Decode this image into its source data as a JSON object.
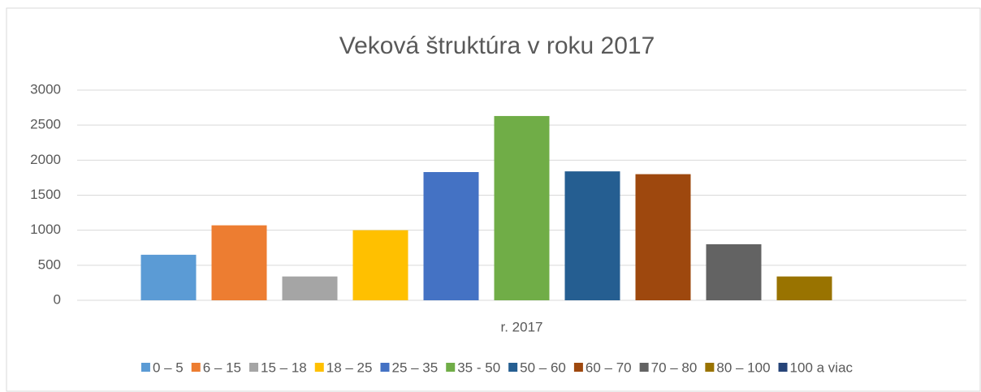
{
  "chart_data": {
    "type": "bar",
    "title": "Veková štruktúra v roku 2017",
    "categories": [
      "r. 2017"
    ],
    "series": [
      {
        "name": "0 – 5",
        "color": "#5b9bd5",
        "values": [
          650
        ]
      },
      {
        "name": "6 – 15",
        "color": "#ed7d31",
        "values": [
          1070
        ]
      },
      {
        "name": "15 – 18",
        "color": "#a5a5a5",
        "values": [
          340
        ]
      },
      {
        "name": "18 – 25",
        "color": "#ffc000",
        "values": [
          1000
        ]
      },
      {
        "name": "25 – 35",
        "color": "#4472c4",
        "values": [
          1830
        ]
      },
      {
        "name": "35 - 50",
        "color": "#70ad47",
        "values": [
          2630
        ]
      },
      {
        "name": "50 – 60",
        "color": "#255e91",
        "values": [
          1840
        ]
      },
      {
        "name": "60 – 70",
        "color": "#9e480e",
        "values": [
          1800
        ]
      },
      {
        "name": "70 – 80",
        "color": "#636363",
        "values": [
          800
        ]
      },
      {
        "name": "80 – 100",
        "color": "#997300",
        "values": [
          340
        ]
      },
      {
        "name": "100 a viac",
        "color": "#264478",
        "values": [
          0
        ]
      }
    ],
    "ylim": [
      0,
      3000
    ],
    "yticks": [
      0,
      500,
      1000,
      1500,
      2000,
      2500,
      3000
    ],
    "grid": true,
    "legend": "bottom"
  }
}
